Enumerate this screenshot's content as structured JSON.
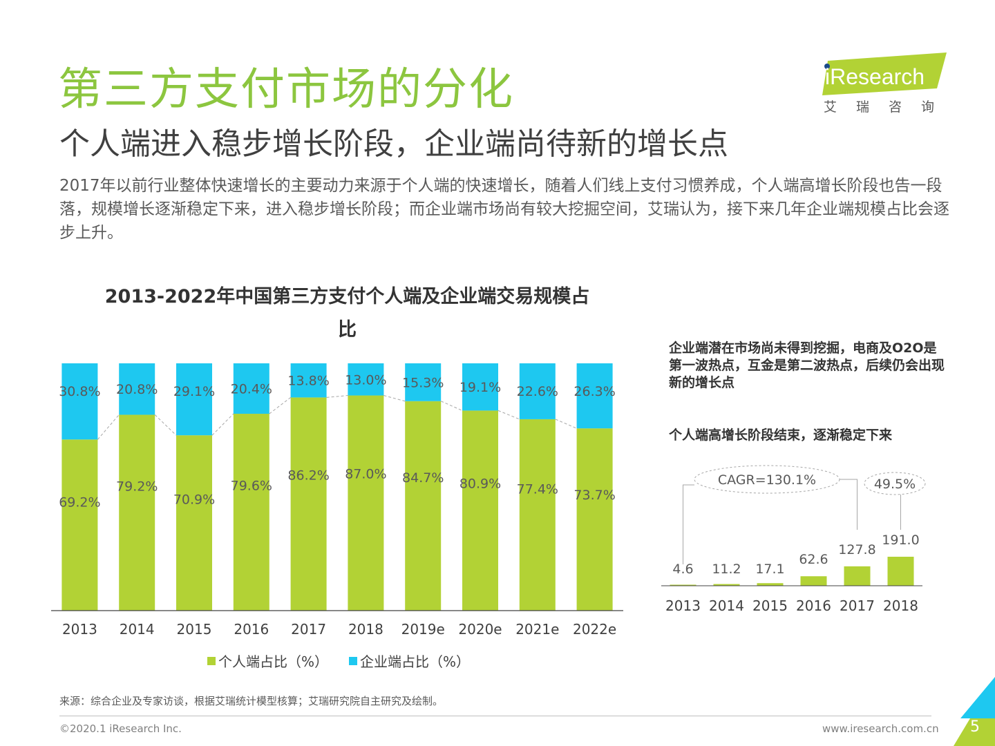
{
  "header": {
    "title": "第三方支付市场的分化",
    "subtitle": "个人端进入稳步增长阶段，企业端尚待新的增长点",
    "intro": "2017年以前行业整体快速增长的主要动力来源于个人端的快速增长，随着人们线上支付习惯养成，个人端高增长阶段也告一段落，规模增长逐渐稳定下来，进入稳步增长阶段；而企业端市场尚有较大挖掘空间，艾瑞认为，接下来几年企业端规模占比会逐步上升。"
  },
  "logo": {
    "name": "iResearch",
    "sub": "艾瑞咨询"
  },
  "colors": {
    "green": "#b2d235",
    "blue": "#1ec8f0",
    "title_green": "#8cc63f"
  },
  "notes": {
    "enterprise": "企业端潜在市场尚未得到挖掘，电商及O2O是第一波热点，互金是第二波热点，后续仍会出现新的增长点",
    "personal": "个人端高增长阶段结束，逐渐稳定下来"
  },
  "chart_data": [
    {
      "type": "bar",
      "stacked": true,
      "title": "2013-2022年中国第三方支付个人端及企业端交易规模占比",
      "categories": [
        "2013",
        "2014",
        "2015",
        "2016",
        "2017",
        "2018",
        "2019e",
        "2020e",
        "2021e",
        "2022e"
      ],
      "series": [
        {
          "name": "个人端占比（%）",
          "color": "#b2d235",
          "values": [
            69.2,
            79.2,
            70.9,
            79.6,
            86.2,
            87.0,
            84.7,
            80.9,
            77.4,
            73.7
          ],
          "labels": [
            "69.2%",
            "79.2%",
            "70.9%",
            "79.6%",
            "86.2%",
            "87.0%",
            "84.7%",
            "80.9%",
            "77.4%",
            "73.7%"
          ]
        },
        {
          "name": "企业端占比（%）",
          "color": "#1ec8f0",
          "values": [
            30.8,
            20.8,
            29.1,
            20.4,
            13.8,
            13.0,
            15.3,
            19.1,
            22.6,
            26.3
          ],
          "labels": [
            "30.8%",
            "20.8%",
            "29.1%",
            "20.4%",
            "13.8%",
            "13.0%",
            "15.3%",
            "19.1%",
            "22.6%",
            "26.3%"
          ]
        }
      ],
      "ylim": [
        0,
        100
      ],
      "legend": "bottom"
    },
    {
      "type": "bar",
      "categories": [
        "2013",
        "2014",
        "2015",
        "2016",
        "2017",
        "2018"
      ],
      "values": [
        4.6,
        11.2,
        17.1,
        62.6,
        127.8,
        191.0
      ],
      "labels": [
        "4.6",
        "11.2",
        "17.1",
        "62.6",
        "127.8",
        "191.0"
      ],
      "annotations": [
        "CAGR=130.1%",
        "49.5%"
      ],
      "color": "#b2d235"
    }
  ],
  "footer": {
    "source": "来源：综合企业及专家访谈，根据艾瑞统计模型核算；艾瑞研究院自主研究及绘制。",
    "copyright": "©2020.1 iResearch Inc.",
    "website": "www.iresearch.com.cn",
    "page": "5"
  }
}
